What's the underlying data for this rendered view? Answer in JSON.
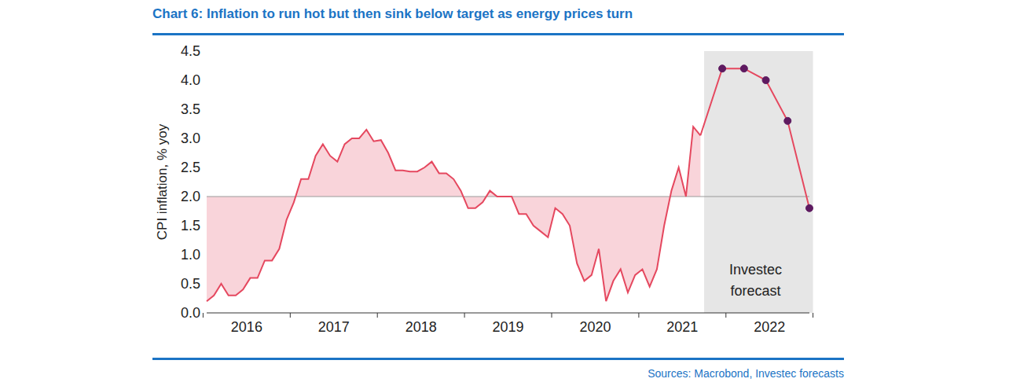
{
  "chart_data": {
    "type": "line",
    "title": "Chart 6: Inflation to run hot but then sink below target as energy prices turn",
    "y_label": "CPI inflation, % yoy",
    "source": "Sources: Macrobond, Investec forecasts",
    "color": "#e5485f",
    "target": 2,
    "ylim": [
      0,
      4.5
    ],
    "yticks": [
      {
        "value": 0,
        "label": "0.0"
      },
      0.5,
      {
        "value": 1,
        "label": "1.0"
      },
      1.5,
      {
        "value": 2,
        "label": "2.0"
      },
      2.5,
      {
        "value": 3,
        "label": "3.0"
      },
      3.5,
      {
        "value": 4,
        "label": "4.0"
      },
      4.5
    ],
    "categories": [
      null,
      null,
      null,
      null,
      null,
      null,
      "2016",
      null,
      null,
      null,
      null,
      null,
      null,
      null,
      null,
      null,
      null,
      null,
      "2017",
      null,
      null,
      null,
      null,
      null,
      null,
      null,
      null,
      null,
      null,
      null,
      "2018",
      null,
      null,
      null,
      null,
      null,
      null,
      null,
      null,
      null,
      null,
      null,
      "2019",
      null,
      null,
      null,
      null,
      null,
      null,
      null,
      null,
      null,
      null,
      null,
      "2020",
      null,
      null,
      null,
      null,
      null,
      null,
      null,
      null,
      null,
      null,
      null,
      "2021",
      null,
      null,
      null,
      null,
      null,
      null,
      null,
      null,
      null,
      null,
      null,
      "2022",
      null,
      null,
      null,
      null,
      null
    ],
    "values": [
      0.2,
      0.3,
      0.5,
      0.3,
      0.3,
      0.4,
      0.6,
      0.6,
      0.9,
      0.9,
      1.1,
      1.6,
      1.9,
      2.3,
      2.3,
      2.7,
      2.9,
      2.7,
      2.6,
      2.9,
      3.0,
      3.0,
      3.15,
      2.95,
      2.97,
      2.75,
      2.45,
      2.45,
      2.43,
      2.43,
      2.5,
      2.6,
      2.4,
      2.4,
      2.3,
      2.1,
      1.8,
      1.8,
      1.9,
      2.1,
      2.0,
      2.0,
      2.0,
      1.7,
      1.7,
      1.5,
      1.4,
      1.3,
      1.8,
      1.7,
      1.5,
      0.85,
      0.55,
      0.65,
      1.1,
      0.2,
      0.55,
      0.75,
      0.35,
      0.65,
      0.75,
      0.45,
      0.75,
      1.5,
      2.1,
      2.5,
      2.0,
      3.2,
      3.05,
      null,
      null,
      null,
      null,
      null,
      null,
      null,
      null,
      null,
      null,
      null,
      null,
      null,
      null,
      null
    ],
    "forecast": {
      "label": "Investec forecast",
      "color": "#5e1a60",
      "values": [
        null,
        null,
        null,
        null,
        null,
        null,
        null,
        null,
        null,
        null,
        null,
        null,
        null,
        null,
        null,
        null,
        null,
        null,
        null,
        null,
        null,
        null,
        null,
        null,
        null,
        null,
        null,
        null,
        null,
        null,
        null,
        null,
        null,
        null,
        null,
        null,
        null,
        null,
        null,
        null,
        null,
        null,
        null,
        null,
        null,
        null,
        null,
        null,
        null,
        null,
        null,
        null,
        null,
        null,
        null,
        null,
        null,
        null,
        null,
        null,
        null,
        null,
        null,
        null,
        null,
        null,
        null,
        null,
        null,
        null,
        null,
        4.2,
        null,
        null,
        4.2,
        null,
        null,
        4.0,
        null,
        null,
        3.3,
        null,
        null,
        1.8
      ]
    }
  }
}
